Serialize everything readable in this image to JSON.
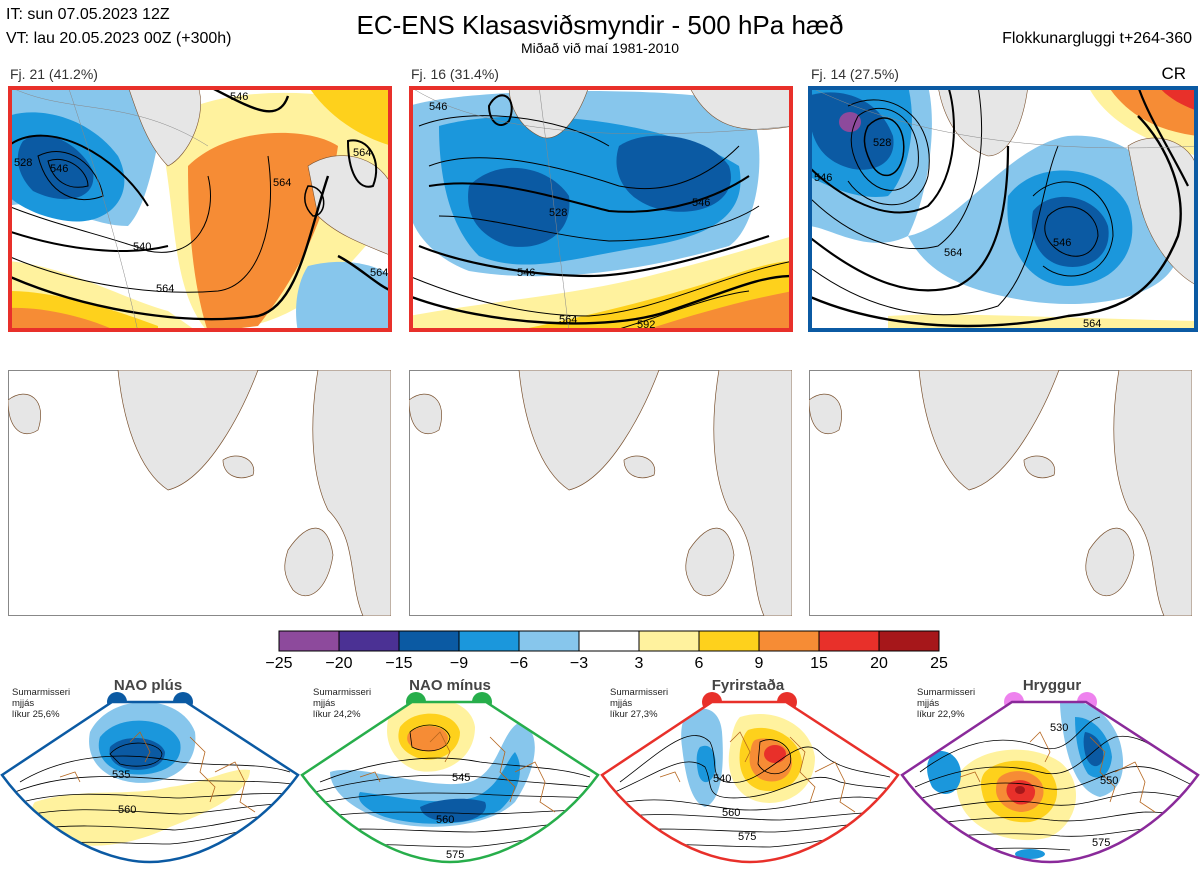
{
  "header": {
    "it": "IT: sun 07.05.2023 12Z",
    "vt": "VT: lau 20.05.2023 00Z  (+300h)",
    "title": "EC-ENS Klasasviðsmyndir - 500 hPa hæð",
    "subtitle": "Miðað við maí 1981-2010",
    "window": "Flokkunargluggi t+264-360"
  },
  "clusters": [
    {
      "label": "Fj. 21 (41.2%)",
      "border_color": "#e8302a",
      "tag": ""
    },
    {
      "label": "Fj. 16 (31.4%)",
      "border_color": "#e8302a",
      "tag": ""
    },
    {
      "label": "Fj. 14 (27.5%)",
      "border_color": "#0b5aa3",
      "tag": "CR"
    }
  ],
  "contour_labels": {
    "c1": [
      "546",
      "528",
      "546",
      "564",
      "540",
      "564",
      "564",
      "564"
    ],
    "c2": [
      "546",
      "528",
      "546",
      "546",
      "564",
      "592"
    ],
    "c3": [
      "528",
      "546",
      "564",
      "546",
      "564"
    ]
  },
  "colorbar": {
    "ticks": [
      "−25",
      "−20",
      "−15",
      "−9",
      "−6",
      "−3",
      "3",
      "6",
      "9",
      "15",
      "20",
      "25"
    ],
    "colors": [
      "#8d4a9c",
      "#4b3194",
      "#0b5aa3",
      "#1b97dc",
      "#87c6ec",
      "#ffffff",
      "#fff29e",
      "#fed11c",
      "#f68c35",
      "#e8302a",
      "#a6171a"
    ]
  },
  "regimes": [
    {
      "name": "NAO plús",
      "season": "Sumarmisseri",
      "spread": "mjjás",
      "prob": "líkur 25,6%",
      "color": "#0b5aa3",
      "contours": [
        "535",
        "560"
      ]
    },
    {
      "name": "NAO mínus",
      "season": "Sumarmisseri",
      "spread": "mjjás",
      "prob": "líkur 24,2%",
      "color": "#27ae4b",
      "contours": [
        "545",
        "560",
        "575"
      ]
    },
    {
      "name": "Fyrirstaða",
      "season": "Sumarmisseri",
      "spread": "mjjás",
      "prob": "líkur 27,3%",
      "color": "#e8302a",
      "contours": [
        "540",
        "560",
        "575"
      ]
    },
    {
      "name": "Hryggur",
      "season": "Sumarmisseri",
      "spread": "mjjás",
      "prob": "líkur 22,9%",
      "color": "#ee82ee",
      "border": "#8a2a9a",
      "contours": [
        "530",
        "550",
        "575"
      ]
    }
  ]
}
